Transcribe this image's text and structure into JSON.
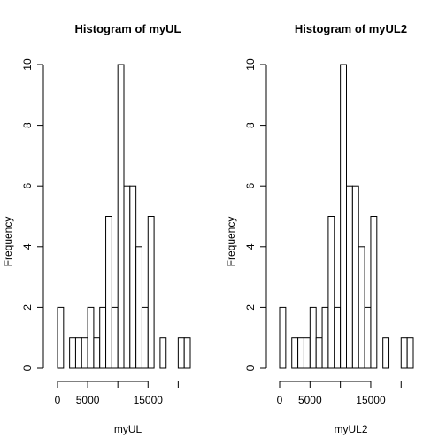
{
  "chart_data": [
    {
      "type": "bar",
      "title": "Histogram of myUL",
      "xlabel": "myUL",
      "ylabel": "Frequency",
      "bin_width": 1000,
      "x_range": [
        0,
        22000
      ],
      "ylim": [
        0,
        10
      ],
      "x_ticks": [
        0,
        5000,
        15000
      ],
      "y_ticks": [
        0,
        2,
        4,
        6,
        8,
        10
      ],
      "values": [
        2,
        0,
        1,
        1,
        1,
        2,
        1,
        2,
        5,
        2,
        10,
        6,
        6,
        4,
        2,
        5,
        0,
        1,
        0,
        0,
        1,
        1
      ]
    },
    {
      "type": "bar",
      "title": "Histogram of myUL2",
      "xlabel": "myUL2",
      "ylabel": "Frequency",
      "bin_width": 1000,
      "x_range": [
        0,
        22000
      ],
      "ylim": [
        0,
        10
      ],
      "x_ticks": [
        0,
        5000,
        15000
      ],
      "y_ticks": [
        0,
        2,
        4,
        6,
        8,
        10
      ],
      "values": [
        2,
        0,
        1,
        1,
        1,
        2,
        1,
        2,
        5,
        2,
        10,
        6,
        6,
        4,
        2,
        5,
        0,
        1,
        0,
        0,
        1,
        1
      ]
    }
  ]
}
